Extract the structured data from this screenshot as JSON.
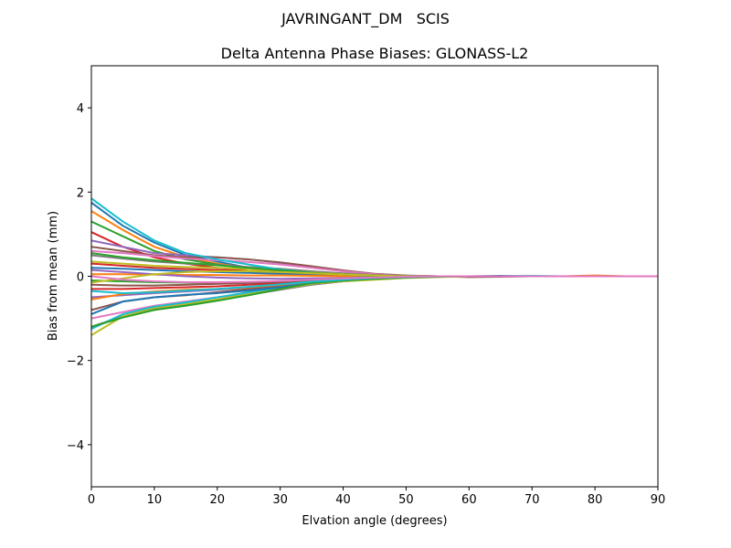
{
  "chart_data": {
    "type": "line",
    "suptitle": "JAVRINGANT_DM   SCIS",
    "title": "Delta Antenna Phase Biases: GLONASS-L2",
    "xlabel": "Elvation angle (degrees)",
    "ylabel": "Bias from mean (mm)",
    "xlim": [
      0,
      90
    ],
    "ylim": [
      -5,
      5
    ],
    "xticks": [
      "0",
      "10",
      "20",
      "30",
      "40",
      "50",
      "60",
      "70",
      "80",
      "90"
    ],
    "yticks": [
      "−4",
      "−2",
      "0",
      "2",
      "4"
    ],
    "grid": false,
    "legend": "none",
    "x": [
      0,
      5,
      10,
      15,
      20,
      25,
      30,
      35,
      40,
      45,
      50,
      55,
      60,
      65,
      70,
      75,
      80,
      85,
      90
    ],
    "series": [
      {
        "color": "#1f77b4",
        "values": [
          1.75,
          1.2,
          0.8,
          0.5,
          0.35,
          0.2,
          0.1,
          0.05,
          0.0,
          -0.02,
          -0.02,
          -0.01,
          0.0,
          0.01,
          0.0,
          0.0,
          0.0,
          0.0,
          0.0
        ]
      },
      {
        "color": "#ff7f0e",
        "values": [
          1.55,
          1.1,
          0.7,
          0.45,
          0.3,
          0.2,
          0.12,
          0.06,
          0.03,
          0.0,
          -0.01,
          0.0,
          0.0,
          0.0,
          0.0,
          0.0,
          0.02,
          0.0,
          0.0
        ]
      },
      {
        "color": "#2ca02c",
        "values": [
          1.3,
          0.95,
          0.6,
          0.4,
          0.28,
          0.18,
          0.1,
          0.05,
          0.02,
          0.0,
          -0.01,
          0.0,
          0.0,
          0.0,
          0.0,
          0.0,
          0.0,
          0.0,
          0.0
        ]
      },
      {
        "color": "#d62728",
        "values": [
          1.05,
          0.7,
          0.45,
          0.3,
          0.2,
          0.12,
          0.07,
          0.03,
          0.01,
          0.0,
          0.0,
          0.0,
          0.0,
          0.0,
          0.0,
          0.0,
          0.0,
          0.0,
          0.0
        ]
      },
      {
        "color": "#9467bd",
        "values": [
          0.85,
          0.7,
          0.55,
          0.5,
          0.45,
          0.4,
          0.32,
          0.22,
          0.12,
          0.05,
          0.01,
          0.0,
          0.0,
          0.0,
          0.0,
          0.0,
          0.0,
          0.0,
          0.0
        ]
      },
      {
        "color": "#8c564b",
        "values": [
          0.7,
          0.6,
          0.5,
          0.45,
          0.45,
          0.4,
          0.33,
          0.24,
          0.14,
          0.06,
          0.02,
          0.0,
          -0.02,
          -0.01,
          0.0,
          0.0,
          0.0,
          0.0,
          0.0
        ]
      },
      {
        "color": "#e377c2",
        "values": [
          0.6,
          0.55,
          0.48,
          0.42,
          0.38,
          0.34,
          0.28,
          0.2,
          0.12,
          0.05,
          0.01,
          0.0,
          0.0,
          0.0,
          0.0,
          0.0,
          0.0,
          0.0,
          0.0
        ]
      },
      {
        "color": "#7f7f7f",
        "values": [
          0.5,
          0.42,
          0.35,
          0.3,
          0.27,
          0.22,
          0.18,
          0.12,
          0.07,
          0.03,
          0.01,
          0.0,
          0.0,
          0.0,
          0.0,
          0.0,
          0.0,
          0.0,
          0.0
        ]
      },
      {
        "color": "#bcbd22",
        "values": [
          0.35,
          0.3,
          0.25,
          0.22,
          0.2,
          0.17,
          0.13,
          0.09,
          0.05,
          0.02,
          0.0,
          0.0,
          0.0,
          0.0,
          0.0,
          0.0,
          0.0,
          0.0,
          0.0
        ]
      },
      {
        "color": "#17becf",
        "values": [
          1.85,
          1.3,
          0.85,
          0.55,
          0.4,
          0.28,
          0.16,
          0.08,
          0.03,
          0.0,
          -0.01,
          0.0,
          0.0,
          0.0,
          0.01,
          0.0,
          0.0,
          0.0,
          0.0
        ]
      },
      {
        "color": "#1f77b4",
        "values": [
          0.2,
          0.18,
          0.15,
          0.12,
          0.1,
          0.08,
          0.06,
          0.04,
          0.02,
          0.01,
          0.0,
          0.0,
          0.0,
          0.0,
          0.0,
          0.0,
          0.0,
          0.0,
          0.0
        ]
      },
      {
        "color": "#ff7f0e",
        "values": [
          0.05,
          0.05,
          0.04,
          0.03,
          0.03,
          0.02,
          0.02,
          0.01,
          0.0,
          0.0,
          0.0,
          0.0,
          0.0,
          0.0,
          0.0,
          0.0,
          0.0,
          0.0,
          0.0
        ]
      },
      {
        "color": "#2ca02c",
        "values": [
          -0.1,
          -0.12,
          -0.14,
          -0.15,
          -0.15,
          -0.14,
          -0.12,
          -0.1,
          -0.07,
          -0.04,
          -0.02,
          0.0,
          0.0,
          0.0,
          0.0,
          0.0,
          0.0,
          0.0,
          0.0
        ]
      },
      {
        "color": "#d62728",
        "values": [
          -0.3,
          -0.3,
          -0.28,
          -0.26,
          -0.24,
          -0.2,
          -0.16,
          -0.11,
          -0.07,
          -0.04,
          -0.02,
          0.0,
          0.0,
          0.0,
          0.0,
          0.0,
          0.0,
          0.0,
          0.0
        ]
      },
      {
        "color": "#9467bd",
        "values": [
          -0.5,
          -0.45,
          -0.4,
          -0.36,
          -0.32,
          -0.26,
          -0.2,
          -0.14,
          -0.08,
          -0.04,
          -0.02,
          0.0,
          0.0,
          0.0,
          0.0,
          0.0,
          0.0,
          0.0,
          0.0
        ]
      },
      {
        "color": "#8c564b",
        "values": [
          -0.8,
          -0.6,
          -0.5,
          -0.45,
          -0.38,
          -0.3,
          -0.22,
          -0.15,
          -0.09,
          -0.05,
          -0.02,
          0.0,
          0.0,
          0.0,
          0.0,
          0.0,
          0.0,
          0.0,
          0.0
        ]
      },
      {
        "color": "#e377c2",
        "values": [
          -1.0,
          -0.85,
          -0.7,
          -0.6,
          -0.5,
          -0.4,
          -0.3,
          -0.2,
          -0.12,
          -0.06,
          -0.03,
          -0.01,
          0.0,
          0.0,
          0.0,
          0.0,
          0.0,
          0.0,
          0.0
        ]
      },
      {
        "color": "#7f7f7f",
        "values": [
          -1.2,
          -0.95,
          -0.78,
          -0.68,
          -0.56,
          -0.44,
          -0.32,
          -0.2,
          -0.12,
          -0.07,
          -0.03,
          -0.01,
          0.0,
          0.0,
          0.0,
          0.0,
          0.0,
          0.0,
          0.0
        ]
      },
      {
        "color": "#bcbd22",
        "values": [
          -1.4,
          -0.95,
          -0.75,
          -0.65,
          -0.55,
          -0.42,
          -0.3,
          -0.18,
          -0.12,
          -0.08,
          -0.04,
          -0.02,
          0.0,
          0.0,
          0.0,
          0.0,
          0.0,
          0.0,
          0.0
        ]
      },
      {
        "color": "#17becf",
        "values": [
          -1.25,
          -0.9,
          -0.72,
          -0.62,
          -0.5,
          -0.38,
          -0.26,
          -0.16,
          -0.1,
          -0.05,
          -0.02,
          0.0,
          0.0,
          0.0,
          0.0,
          0.0,
          0.0,
          0.0,
          0.0
        ]
      },
      {
        "color": "#1f77b4",
        "values": [
          -0.9,
          -0.6,
          -0.5,
          -0.44,
          -0.4,
          -0.34,
          -0.26,
          -0.16,
          -0.1,
          -0.05,
          -0.02,
          0.0,
          0.0,
          0.0,
          0.0,
          0.0,
          0.0,
          0.0,
          0.0
        ]
      },
      {
        "color": "#ff7f0e",
        "values": [
          -0.55,
          -0.42,
          -0.36,
          -0.32,
          -0.3,
          -0.26,
          -0.2,
          -0.13,
          -0.08,
          -0.04,
          -0.02,
          0.0,
          0.0,
          0.0,
          0.0,
          0.0,
          0.0,
          0.0,
          0.0
        ]
      },
      {
        "color": "#2ca02c",
        "values": [
          -1.2,
          -0.98,
          -0.8,
          -0.7,
          -0.58,
          -0.45,
          -0.3,
          -0.16,
          -0.1,
          -0.06,
          -0.03,
          -0.01,
          0.0,
          0.0,
          0.0,
          0.0,
          0.0,
          0.0,
          0.0
        ]
      },
      {
        "color": "#d62728",
        "values": [
          0.3,
          0.25,
          0.2,
          0.17,
          0.15,
          0.12,
          0.1,
          0.07,
          0.04,
          0.02,
          0.0,
          0.0,
          0.0,
          0.0,
          0.0,
          0.0,
          0.0,
          0.0,
          0.0
        ]
      },
      {
        "color": "#9467bd",
        "values": [
          0.15,
          0.1,
          0.05,
          0.0,
          -0.03,
          -0.05,
          -0.06,
          -0.05,
          -0.04,
          -0.02,
          -0.01,
          0.0,
          0.0,
          0.0,
          0.0,
          0.0,
          0.0,
          0.0,
          0.0
        ]
      },
      {
        "color": "#8c564b",
        "values": [
          -0.2,
          -0.22,
          -0.22,
          -0.2,
          -0.18,
          -0.16,
          -0.13,
          -0.1,
          -0.07,
          -0.04,
          -0.02,
          0.0,
          0.0,
          0.0,
          0.0,
          0.0,
          0.0,
          0.0,
          0.0
        ]
      },
      {
        "color": "#17becf",
        "values": [
          -0.35,
          -0.4,
          -0.38,
          -0.34,
          -0.3,
          -0.25,
          -0.19,
          -0.13,
          -0.08,
          -0.04,
          -0.02,
          0.0,
          0.0,
          0.0,
          0.0,
          0.0,
          0.0,
          0.0,
          0.0
        ]
      },
      {
        "color": "#2ca02c",
        "values": [
          0.55,
          0.45,
          0.38,
          0.32,
          0.26,
          0.2,
          0.14,
          0.08,
          0.04,
          0.01,
          0.0,
          0.0,
          0.0,
          0.0,
          0.0,
          0.0,
          0.0,
          0.0,
          0.0
        ]
      },
      {
        "color": "#bcbd22",
        "values": [
          -0.15,
          -0.05,
          0.05,
          0.1,
          0.12,
          0.12,
          0.1,
          0.07,
          0.04,
          0.02,
          0.0,
          0.0,
          0.0,
          0.0,
          0.0,
          0.0,
          0.0,
          0.0,
          0.0
        ]
      },
      {
        "color": "#e377c2",
        "values": [
          0.0,
          -0.08,
          -0.12,
          -0.14,
          -0.14,
          -0.13,
          -0.11,
          -0.08,
          -0.05,
          -0.03,
          -0.01,
          0.0,
          0.0,
          0.0,
          0.0,
          0.0,
          0.0,
          0.0,
          0.0
        ]
      }
    ]
  }
}
